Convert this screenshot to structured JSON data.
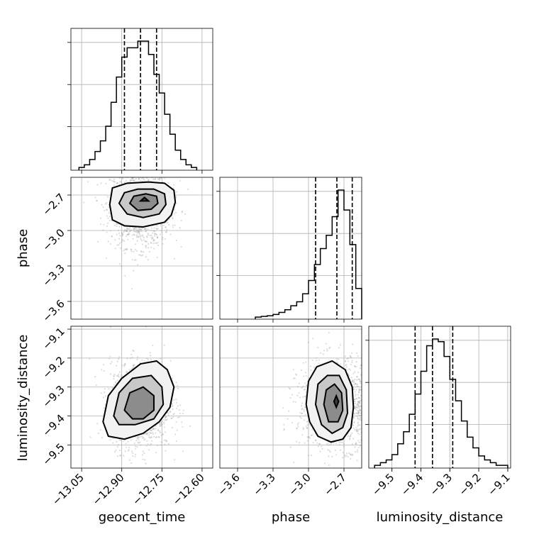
{
  "chart_data": {
    "type": "corner",
    "parameters": [
      "geocent_time",
      "phase",
      "luminosity_distance"
    ],
    "axis_labels": [
      "geocent_time",
      "phase",
      "luminosity_distance"
    ],
    "ranges": {
      "geocent_time": [
        -13.09,
        -12.56
      ],
      "phase": [
        -3.75,
        -2.55
      ],
      "luminosity_distance": [
        -9.58,
        -9.09
      ]
    },
    "ticks": {
      "geocent_time": [
        -13.05,
        -12.9,
        -12.75,
        -12.6
      ],
      "phase": [
        -3.6,
        -3.3,
        -3.0,
        -2.7
      ],
      "luminosity_distance": [
        -9.5,
        -9.4,
        -9.3,
        -9.2,
        -9.1
      ]
    },
    "tick_labels": {
      "geocent_time": [
        "−13.05",
        "−12.90",
        "−12.75",
        "−12.60"
      ],
      "phase": [
        "−3.6",
        "−3.3",
        "−3.0",
        "−2.7"
      ],
      "luminosity_distance": [
        "−9.5",
        "−9.4",
        "−9.3",
        "−9.2",
        "−9.1"
      ]
    },
    "quantiles": {
      "geocent_time": [
        -12.89,
        -12.83,
        -12.77
      ],
      "phase": [
        -2.94,
        -2.76,
        -2.63
      ],
      "luminosity_distance": [
        -9.42,
        -9.36,
        -9.29
      ]
    },
    "histograms": {
      "geocent_time": {
        "edges": [
          -13.06,
          -13.04,
          -13.02,
          -13.0,
          -12.98,
          -12.96,
          -12.94,
          -12.92,
          -12.9,
          -12.88,
          -12.86,
          -12.84,
          -12.82,
          -12.8,
          -12.78,
          -12.76,
          -12.74,
          -12.72,
          -12.7,
          -12.68,
          -12.66,
          -12.64,
          -12.62
        ],
        "counts": [
          1,
          3,
          7,
          13,
          21,
          32,
          50,
          69,
          84,
          91,
          91,
          96,
          96,
          86,
          71,
          57,
          41,
          26,
          14,
          7,
          3,
          1
        ]
      },
      "phase": {
        "edges": [
          -3.45,
          -3.4,
          -3.35,
          -3.3,
          -3.25,
          -3.2,
          -3.15,
          -3.1,
          -3.05,
          -3.0,
          -2.95,
          -2.9,
          -2.85,
          -2.8,
          -2.75,
          -2.7,
          -2.65,
          -2.6,
          -2.55
        ],
        "counts": [
          0.5,
          1,
          1.5,
          2.5,
          4,
          6,
          9,
          12,
          18,
          28,
          40,
          52,
          62,
          76,
          96,
          81,
          55,
          22
        ]
      },
      "luminosity_distance": {
        "edges": [
          -9.56,
          -9.54,
          -9.52,
          -9.5,
          -9.48,
          -9.46,
          -9.44,
          -9.42,
          -9.4,
          -9.38,
          -9.36,
          -9.34,
          -9.32,
          -9.3,
          -9.28,
          -9.26,
          -9.24,
          -9.22,
          -9.2,
          -9.18,
          -9.16,
          -9.14,
          -9.12,
          -9.1
        ],
        "counts": [
          1,
          3,
          5,
          9,
          17,
          26,
          39,
          54,
          71,
          90,
          95,
          93,
          82,
          65,
          49,
          34,
          22,
          14,
          8,
          5,
          3,
          1,
          1
        ]
      }
    },
    "joint": [
      {
        "x": "geocent_time",
        "y": "phase",
        "center": [
          -12.83,
          -2.79
        ],
        "sigma": [
          0.045,
          0.14
        ],
        "contours": [
          {
            "points": [
              [
                -12.945,
                -2.78
              ],
              [
                -12.935,
                -2.64
              ],
              [
                -12.88,
                -2.6
              ],
              [
                -12.8,
                -2.59
              ],
              [
                -12.74,
                -2.6
              ],
              [
                -12.705,
                -2.66
              ],
              [
                -12.7,
                -2.76
              ],
              [
                -12.715,
                -2.87
              ],
              [
                -12.74,
                -2.93
              ],
              [
                -12.82,
                -2.97
              ],
              [
                -12.89,
                -2.96
              ],
              [
                -12.935,
                -2.91
              ]
            ]
          },
          {
            "points": [
              [
                -12.91,
                -2.77
              ],
              [
                -12.89,
                -2.68
              ],
              [
                -12.84,
                -2.65
              ],
              [
                -12.78,
                -2.65
              ],
              [
                -12.74,
                -2.69
              ],
              [
                -12.735,
                -2.78
              ],
              [
                -12.76,
                -2.86
              ],
              [
                -12.82,
                -2.89
              ],
              [
                -12.88,
                -2.86
              ]
            ]
          },
          {
            "points": [
              [
                -12.87,
                -2.77
              ],
              [
                -12.855,
                -2.71
              ],
              [
                -12.81,
                -2.69
              ],
              [
                -12.77,
                -2.71
              ],
              [
                -12.765,
                -2.77
              ],
              [
                -12.79,
                -2.82
              ],
              [
                -12.84,
                -2.83
              ]
            ]
          },
          {
            "points": [
              [
                -12.83,
                -2.75
              ],
              [
                -12.815,
                -2.72
              ],
              [
                -12.8,
                -2.75
              ]
            ]
          }
        ]
      },
      {
        "x": "geocent_time",
        "y": "luminosity_distance",
        "center": [
          -12.83,
          -9.36
        ],
        "sigma": [
          0.045,
          0.06
        ],
        "contours": [
          {
            "points": [
              [
                -12.97,
                -9.42
              ],
              [
                -12.95,
                -9.33
              ],
              [
                -12.9,
                -9.27
              ],
              [
                -12.83,
                -9.22
              ],
              [
                -12.77,
                -9.21
              ],
              [
                -12.73,
                -9.24
              ],
              [
                -12.705,
                -9.3
              ],
              [
                -12.72,
                -9.37
              ],
              [
                -12.76,
                -9.42
              ],
              [
                -12.82,
                -9.46
              ],
              [
                -12.89,
                -9.48
              ],
              [
                -12.95,
                -9.47
              ]
            ]
          },
          {
            "points": [
              [
                -12.93,
                -9.4
              ],
              [
                -12.91,
                -9.32
              ],
              [
                -12.86,
                -9.27
              ],
              [
                -12.79,
                -9.26
              ],
              [
                -12.75,
                -9.3
              ],
              [
                -12.745,
                -9.36
              ],
              [
                -12.78,
                -9.41
              ],
              [
                -12.85,
                -9.43
              ],
              [
                -12.91,
                -9.43
              ]
            ]
          },
          {
            "points": [
              [
                -12.89,
                -9.38
              ],
              [
                -12.87,
                -9.32
              ],
              [
                -12.82,
                -9.3
              ],
              [
                -12.78,
                -9.33
              ],
              [
                -12.78,
                -9.38
              ],
              [
                -12.82,
                -9.41
              ],
              [
                -12.86,
                -9.41
              ]
            ]
          }
        ]
      },
      {
        "x": "phase",
        "y": "luminosity_distance",
        "center": [
          -2.76,
          -9.36
        ],
        "sigma": [
          0.13,
          0.06
        ],
        "contours": [
          {
            "points": [
              [
                -3.02,
                -9.36
              ],
              [
                -3.0,
                -9.28
              ],
              [
                -2.93,
                -9.23
              ],
              [
                -2.8,
                -9.21
              ],
              [
                -2.69,
                -9.24
              ],
              [
                -2.63,
                -9.3
              ],
              [
                -2.62,
                -9.37
              ],
              [
                -2.64,
                -9.44
              ],
              [
                -2.71,
                -9.48
              ],
              [
                -2.81,
                -9.49
              ],
              [
                -2.92,
                -9.47
              ],
              [
                -2.99,
                -9.42
              ]
            ]
          },
          {
            "points": [
              [
                -2.94,
                -9.36
              ],
              [
                -2.92,
                -9.29
              ],
              [
                -2.84,
                -9.26
              ],
              [
                -2.74,
                -9.26
              ],
              [
                -2.68,
                -9.31
              ],
              [
                -2.67,
                -9.39
              ],
              [
                -2.71,
                -9.44
              ],
              [
                -2.8,
                -9.46
              ],
              [
                -2.89,
                -9.43
              ]
            ]
          },
          {
            "points": [
              [
                -2.87,
                -9.36
              ],
              [
                -2.85,
                -9.31
              ],
              [
                -2.78,
                -9.29
              ],
              [
                -2.72,
                -9.32
              ],
              [
                -2.71,
                -9.38
              ],
              [
                -2.75,
                -9.42
              ],
              [
                -2.83,
                -9.42
              ]
            ]
          },
          {
            "points": [
              [
                -2.785,
                -9.35
              ],
              [
                -2.765,
                -9.33
              ],
              [
                -2.745,
                -9.35
              ],
              [
                -2.765,
                -9.37
              ]
            ]
          }
        ]
      }
    ],
    "grid": true
  }
}
